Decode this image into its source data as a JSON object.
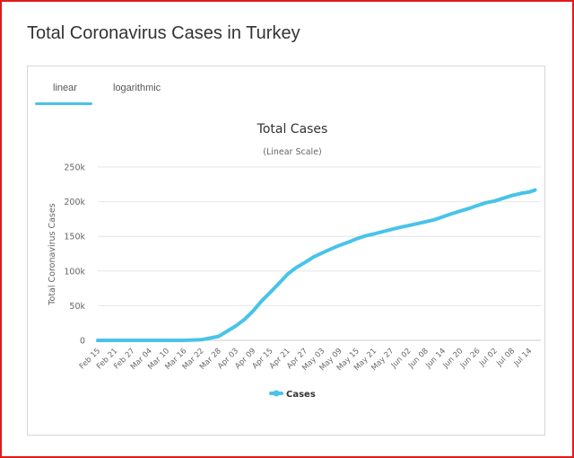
{
  "page": {
    "title": "Total Coronavirus Cases in Turkey"
  },
  "tabs": [
    {
      "label": "linear",
      "active": true
    },
    {
      "label": "logarithmic",
      "active": false
    }
  ],
  "colors": {
    "accent": "#49c3e8",
    "frame": "#e11b1b"
  },
  "chart_data": {
    "type": "line",
    "title": "Total Cases",
    "subtitle": "(Linear Scale)",
    "ylabel": "Total Coronavirus Cases",
    "xlabel": "",
    "ylim": [
      0,
      250000
    ],
    "yticks": [
      0,
      50000,
      100000,
      150000,
      200000,
      250000
    ],
    "ytick_labels": [
      "0",
      "50k",
      "100k",
      "150k",
      "200k",
      "250k"
    ],
    "x_tick_labels": [
      "Feb 15",
      "Feb 21",
      "Feb 27",
      "Mar 04",
      "Mar 10",
      "Mar 16",
      "Mar 22",
      "Mar 28",
      "Apr 03",
      "Apr 09",
      "Apr 15",
      "Apr 21",
      "Apr 27",
      "May 03",
      "May 09",
      "May 15",
      "May 21",
      "May 27",
      "Jun 02",
      "Jun 08",
      "Jun 14",
      "Jun 20",
      "Jun 26",
      "Jul 02",
      "Jul 08",
      "Jul 14"
    ],
    "grid": true,
    "legend_position": "bottom",
    "series": [
      {
        "name": "Cases",
        "color": "#49c3e8",
        "points": [
          [
            "Feb 15",
            0
          ],
          [
            "Mar 10",
            0
          ],
          [
            "Mar 16",
            50
          ],
          [
            "Mar 22",
            950
          ],
          [
            "Mar 28",
            5700
          ],
          [
            "Apr 03",
            20900
          ],
          [
            "Apr 06",
            30200
          ],
          [
            "Apr 09",
            42300
          ],
          [
            "Apr 12",
            56900
          ],
          [
            "Apr 15",
            69400
          ],
          [
            "Apr 18",
            82300
          ],
          [
            "Apr 21",
            95600
          ],
          [
            "Apr 24",
            104900
          ],
          [
            "Apr 27",
            112300
          ],
          [
            "Apr 30",
            120200
          ],
          [
            "May 03",
            126000
          ],
          [
            "May 06",
            131700
          ],
          [
            "May 09",
            137100
          ],
          [
            "May 12",
            141500
          ],
          [
            "May 15",
            146500
          ],
          [
            "May 18",
            150600
          ],
          [
            "May 21",
            153500
          ],
          [
            "May 24",
            156800
          ],
          [
            "May 27",
            159800
          ],
          [
            "May 30",
            163000
          ],
          [
            "Jun 02",
            165600
          ],
          [
            "Jun 05",
            168300
          ],
          [
            "Jun 08",
            171100
          ],
          [
            "Jun 11",
            174000
          ],
          [
            "Jun 14",
            178200
          ],
          [
            "Jun 17",
            182700
          ],
          [
            "Jun 20",
            186500
          ],
          [
            "Jun 23",
            190200
          ],
          [
            "Jun 26",
            194500
          ],
          [
            "Jun 29",
            198600
          ],
          [
            "Jul 02",
            201100
          ],
          [
            "Jul 05",
            205000
          ],
          [
            "Jul 08",
            208900
          ],
          [
            "Jul 11",
            211900
          ],
          [
            "Jul 14",
            214000
          ],
          [
            "Jul 16",
            216900
          ]
        ]
      }
    ]
  }
}
